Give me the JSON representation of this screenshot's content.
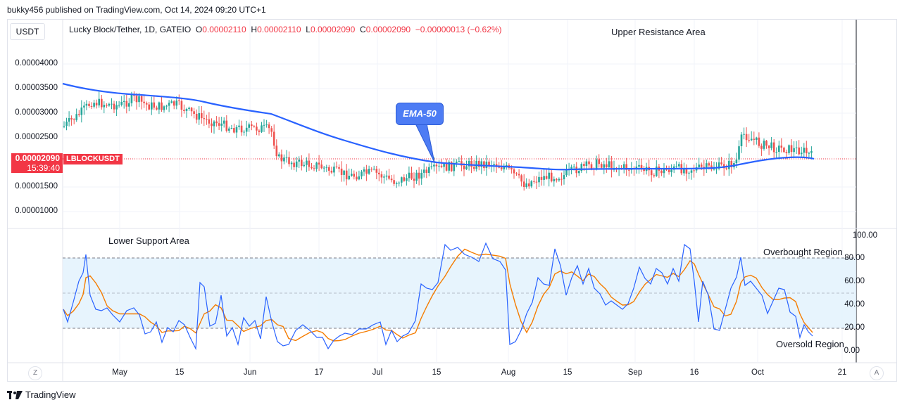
{
  "header": {
    "published": "bukky456 published on TradingView.com, Oct 14, 2024 09:20 UTC+1"
  },
  "toolbar": {
    "currency": "USDT"
  },
  "legend": {
    "symbol": "Lucky Block/Tether, 1D, GATEIO",
    "o_label": "O",
    "o_value": "0.00002110",
    "h_label": "H",
    "h_value": "0.00002110",
    "l_label": "L",
    "l_value": "0.00002090",
    "c_label": "C",
    "c_value": "0.00002090",
    "change": "−0.00000013 (−0.62%)"
  },
  "annotations": {
    "upper_resistance": "Upper Resistance Area",
    "lower_support": "Lower Support Area",
    "overbought": "Overbought Region",
    "oversold": "Oversold Region",
    "ema": "EMA-50"
  },
  "price_tag": {
    "price": "0.00002090",
    "countdown": "15:39:40",
    "ticker": "LBLOCKUSDT"
  },
  "price_axis": [
    "0.00004000",
    "0.00003500",
    "0.00003000",
    "0.00002500",
    "0.00001500",
    "0.00001000"
  ],
  "rsi_axis": [
    "100.00",
    "80.00",
    "60.00",
    "40.00",
    "20.00",
    "0.00"
  ],
  "time_axis": [
    "May",
    "15",
    "Jun",
    "17",
    "Jul",
    "15",
    "Aug",
    "15",
    "Sep",
    "16",
    "Oct",
    "21"
  ],
  "controls": {
    "zoom_label": "Z",
    "auto_label": "A"
  },
  "footer": {
    "brand": "TradingView"
  },
  "colors": {
    "up": "#26a69a",
    "down": "#ef5350",
    "ema": "#2962ff",
    "rsi_fast": "#2962ff",
    "rsi_slow": "#f57c00",
    "band": "#e3f2fd"
  }
}
